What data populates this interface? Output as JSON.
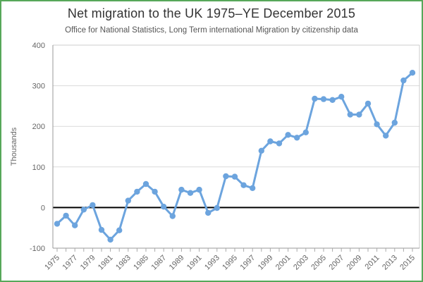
{
  "title": "Net migration to the UK 1975–YE December 2015",
  "subtitle": "Office for National Statistics, Long Term international Migration by citizenship data",
  "colors": {
    "series": "#6CA4DE",
    "frame_border": "#57a85a",
    "zero_line": "#000000"
  },
  "chart_data": {
    "type": "line",
    "title": "Net migration to the UK 1975–YE December 2015",
    "subtitle": "Office for National Statistics, Long Term international Migration by citizenship data",
    "xlabel": "",
    "ylabel": "Thousands",
    "ylim": [
      -100,
      400
    ],
    "yticks": [
      -100,
      0,
      100,
      200,
      300,
      400
    ],
    "grid": true,
    "legend": false,
    "x": [
      1975,
      1976,
      1977,
      1978,
      1979,
      1980,
      1981,
      1982,
      1983,
      1984,
      1985,
      1986,
      1987,
      1988,
      1989,
      1990,
      1991,
      1992,
      1993,
      1994,
      1995,
      1996,
      1997,
      1998,
      1999,
      2000,
      2001,
      2002,
      2003,
      2004,
      2005,
      2006,
      2007,
      2008,
      2009,
      2010,
      2011,
      2012,
      2013,
      2014,
      2015
    ],
    "values": [
      -40,
      -20,
      -44,
      -5,
      6,
      -55,
      -79,
      -56,
      17,
      39,
      58,
      39,
      2,
      -21,
      44,
      36,
      44,
      -13,
      -1,
      77,
      76,
      55,
      48,
      140,
      163,
      158,
      179,
      172,
      185,
      268,
      267,
      265,
      273,
      229,
      229,
      256,
      205,
      177,
      209,
      313,
      332
    ],
    "xtick_labels": [
      "1975",
      "1977",
      "1979",
      "1981",
      "1983",
      "1985",
      "1987",
      "1989",
      "1991",
      "1993",
      "1995",
      "1997",
      "1999",
      "2001",
      "2003",
      "2005",
      "2007",
      "2009",
      "2011",
      "2013",
      "2015"
    ]
  }
}
